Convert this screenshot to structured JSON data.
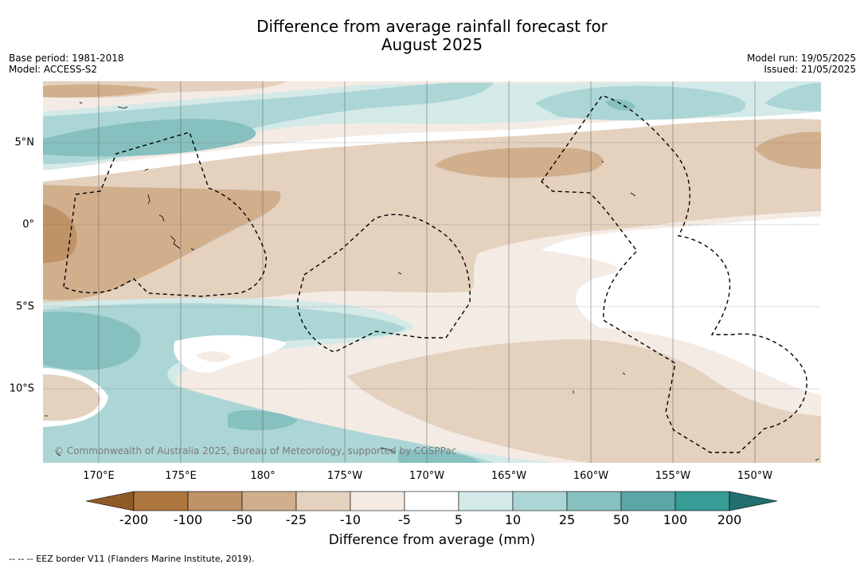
{
  "title_line1": "Difference from average rainfall forecast for",
  "title_line2": "August 2025",
  "base_period": "Base period: 1981-2018",
  "model": "Model: ACCESS-S2",
  "model_run": "Model run: 19/05/2025",
  "issued": "Issued: 21/05/2025",
  "lon_labels": [
    "170°E",
    "175°E",
    "180°",
    "175°W",
    "170°W",
    "165°W",
    "160°W",
    "155°W",
    "150°W"
  ],
  "lat_labels": [
    "5°N",
    "0°",
    "5°S",
    "10°S"
  ],
  "copyright": "© Commonwealth of Australia 2025, Bureau of Meteorology, supported by COSPPac",
  "colorbar": {
    "ticks": [
      "-200",
      "-100",
      "-50",
      "-25",
      "-10",
      "-5",
      "5",
      "10",
      "25",
      "50",
      "100",
      "200"
    ],
    "colors": [
      "#8f5a26",
      "#ad773f",
      "#bf9267",
      "#d1af8d",
      "#e4d1be",
      "#f4ebe5",
      "#ffffff",
      "#d4eae8",
      "#acd6d5",
      "#86c0bf",
      "#5aa7a6",
      "#379b96",
      "#236f6d"
    ],
    "title": "Difference from average (mm)"
  },
  "legend_text": "--  --  -- EEZ border V11 (Flanders Marine Institute, 2019)."
}
